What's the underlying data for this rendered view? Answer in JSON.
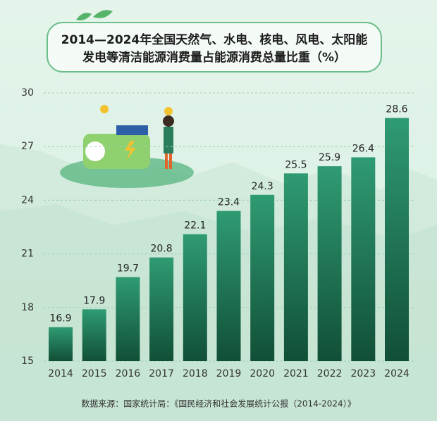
{
  "chart_data": {
    "type": "bar",
    "title": [
      "2014—2024年全国天然气、水电、核电、风电、太阳能",
      "发电等清洁能源消费量占能源消费总量比重（%）"
    ],
    "categories": [
      "2014",
      "2015",
      "2016",
      "2017",
      "2018",
      "2019",
      "2020",
      "2021",
      "2022",
      "2023",
      "2024"
    ],
    "values": [
      16.9,
      17.9,
      19.7,
      20.8,
      22.1,
      23.4,
      24.3,
      25.5,
      25.9,
      26.4,
      28.6
    ],
    "color": "#1f7a55",
    "ylim": [
      15,
      30
    ],
    "yticks": [
      15,
      18,
      21,
      24,
      27,
      30
    ],
    "grid": true,
    "source": "数据来源：国家统计局：《国民经济和社会发展统计公报（2014-2024）》"
  }
}
